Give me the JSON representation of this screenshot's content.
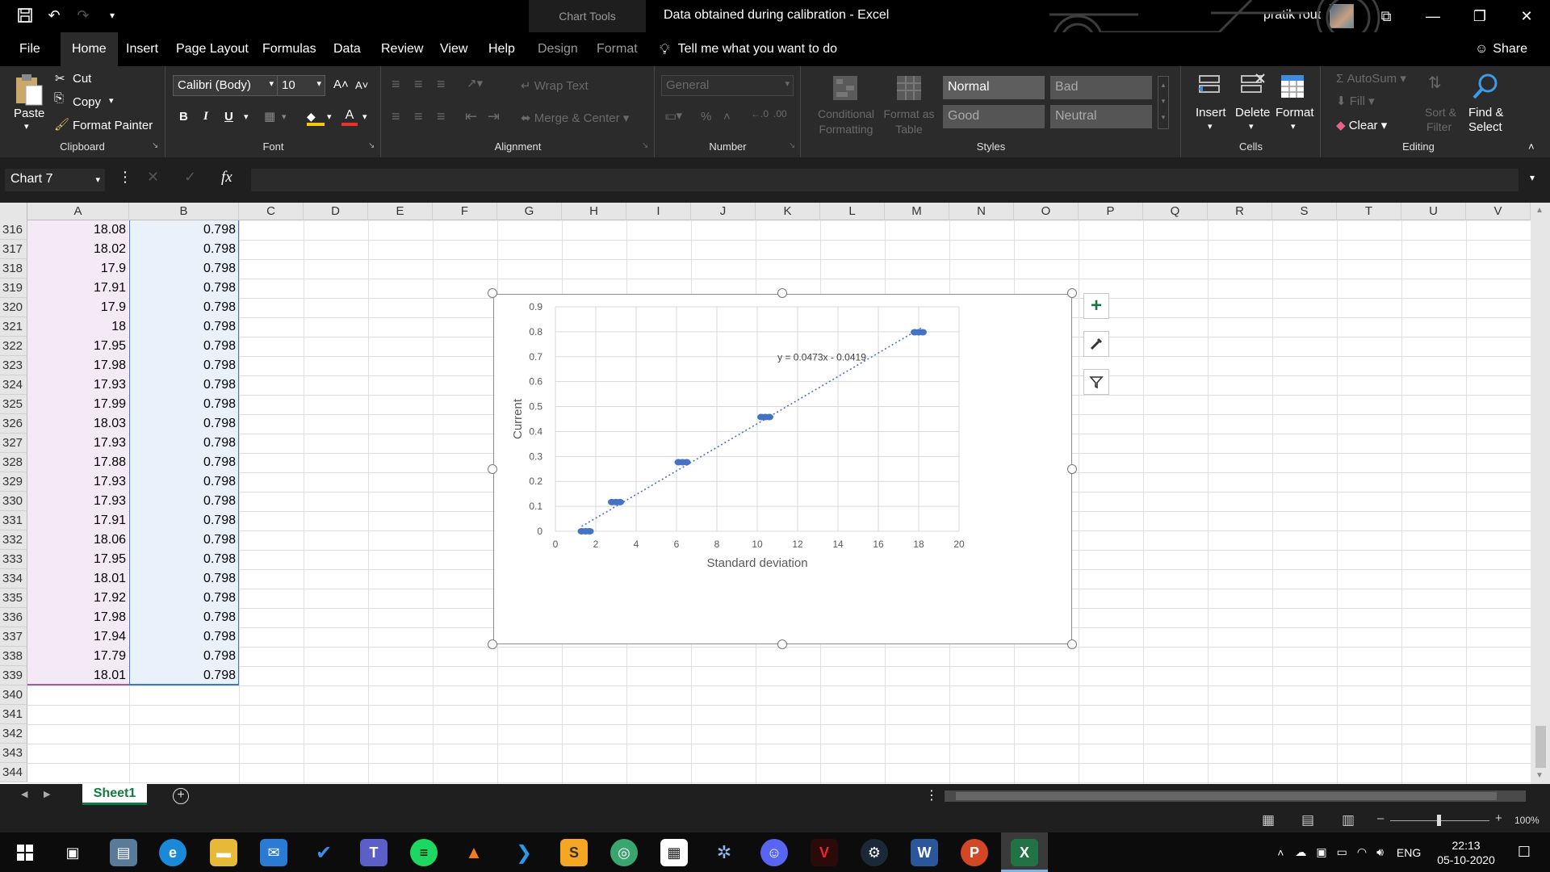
{
  "titlebar": {
    "context_tab": "Chart Tools",
    "doc_title": "Data obtained during calibration  -  Excel",
    "user": "pratik rout"
  },
  "menu": {
    "tabs": [
      "File",
      "Home",
      "Insert",
      "Page Layout",
      "Formulas",
      "Data",
      "Review",
      "View",
      "Help",
      "Design",
      "Format"
    ],
    "tell_me": "Tell me what you want to do",
    "share": "Share"
  },
  "ribbon": {
    "clipboard": {
      "paste": "Paste",
      "cut": "Cut",
      "copy": "Copy",
      "format_painter": "Format Painter",
      "label": "Clipboard"
    },
    "font": {
      "family": "Calibri (Body)",
      "size": "10",
      "bold": "B",
      "italic": "I",
      "underline": "U",
      "label": "Font"
    },
    "alignment": {
      "wrap": "Wrap Text",
      "merge": "Merge & Center",
      "label": "Alignment"
    },
    "number": {
      "format": "General",
      "label": "Number"
    },
    "styles": {
      "cond_line1": "Conditional",
      "cond_line2": "Formatting",
      "fmt_line1": "Format as",
      "fmt_line2": "Table",
      "normal": "Normal",
      "bad": "Bad",
      "good": "Good",
      "neutral": "Neutral",
      "label": "Styles"
    },
    "cells": {
      "insert": "Insert",
      "delete": "Delete",
      "format": "Format",
      "label": "Cells"
    },
    "editing": {
      "autosum": "AutoSum",
      "fill": "Fill",
      "clear": "Clear",
      "sort_line1": "Sort &",
      "sort_line2": "Filter",
      "find_line1": "Find &",
      "find_line2": "Select",
      "label": "Editing"
    }
  },
  "formula_bar": {
    "name_box": "Chart 7",
    "fx": "fx"
  },
  "columns": [
    "A",
    "B",
    "C",
    "D",
    "E",
    "F",
    "G",
    "H",
    "I",
    "J",
    "K",
    "L",
    "M",
    "N",
    "O",
    "P",
    "Q",
    "R",
    "S",
    "T",
    "U",
    "V"
  ],
  "rows": [
    {
      "n": "316",
      "a": "18.08",
      "b": "0.798"
    },
    {
      "n": "317",
      "a": "18.02",
      "b": "0.798"
    },
    {
      "n": "318",
      "a": "17.9",
      "b": "0.798"
    },
    {
      "n": "319",
      "a": "17.91",
      "b": "0.798"
    },
    {
      "n": "320",
      "a": "17.9",
      "b": "0.798"
    },
    {
      "n": "321",
      "a": "18",
      "b": "0.798"
    },
    {
      "n": "322",
      "a": "17.95",
      "b": "0.798"
    },
    {
      "n": "323",
      "a": "17.98",
      "b": "0.798"
    },
    {
      "n": "324",
      "a": "17.93",
      "b": "0.798"
    },
    {
      "n": "325",
      "a": "17.99",
      "b": "0.798"
    },
    {
      "n": "326",
      "a": "18.03",
      "b": "0.798"
    },
    {
      "n": "327",
      "a": "17.93",
      "b": "0.798"
    },
    {
      "n": "328",
      "a": "17.88",
      "b": "0.798"
    },
    {
      "n": "329",
      "a": "17.93",
      "b": "0.798"
    },
    {
      "n": "330",
      "a": "17.93",
      "b": "0.798"
    },
    {
      "n": "331",
      "a": "17.91",
      "b": "0.798"
    },
    {
      "n": "332",
      "a": "18.06",
      "b": "0.798"
    },
    {
      "n": "333",
      "a": "17.95",
      "b": "0.798"
    },
    {
      "n": "334",
      "a": "18.01",
      "b": "0.798"
    },
    {
      "n": "335",
      "a": "17.92",
      "b": "0.798"
    },
    {
      "n": "336",
      "a": "17.98",
      "b": "0.798"
    },
    {
      "n": "337",
      "a": "17.94",
      "b": "0.798"
    },
    {
      "n": "338",
      "a": "17.79",
      "b": "0.798"
    },
    {
      "n": "339",
      "a": "18.01",
      "b": "0.798"
    },
    {
      "n": "340",
      "a": "",
      "b": ""
    },
    {
      "n": "341",
      "a": "",
      "b": ""
    },
    {
      "n": "342",
      "a": "",
      "b": ""
    },
    {
      "n": "343",
      "a": "",
      "b": ""
    },
    {
      "n": "344",
      "a": "",
      "b": ""
    }
  ],
  "chart_data": {
    "type": "scatter",
    "xlabel": "Standard deviation",
    "ylabel": "Current",
    "xlim": [
      0,
      20
    ],
    "ylim": [
      0,
      0.9
    ],
    "xticks": [
      0,
      2,
      4,
      6,
      8,
      10,
      12,
      14,
      16,
      18,
      20
    ],
    "yticks": [
      0,
      0.1,
      0.2,
      0.3,
      0.4,
      0.5,
      0.6,
      0.7,
      0.8,
      0.9
    ],
    "points": [
      {
        "x": 1.3,
        "y": 0.0
      },
      {
        "x": 1.5,
        "y": 0.0
      },
      {
        "x": 1.7,
        "y": 0.0
      },
      {
        "x": 2.8,
        "y": 0.117
      },
      {
        "x": 3.0,
        "y": 0.117
      },
      {
        "x": 3.2,
        "y": 0.117
      },
      {
        "x": 6.1,
        "y": 0.277
      },
      {
        "x": 6.3,
        "y": 0.277
      },
      {
        "x": 6.5,
        "y": 0.277
      },
      {
        "x": 10.2,
        "y": 0.458
      },
      {
        "x": 10.4,
        "y": 0.458
      },
      {
        "x": 10.6,
        "y": 0.458
      },
      {
        "x": 17.8,
        "y": 0.798
      },
      {
        "x": 18.0,
        "y": 0.798
      },
      {
        "x": 18.2,
        "y": 0.798
      }
    ],
    "trendline": {
      "slope": 0.0473,
      "intercept": -0.0419,
      "x_from": 1.3,
      "x_to": 18.2,
      "label": "y = 0.0473x - 0.0419"
    },
    "marker_color": "#4472c4",
    "grid": true
  },
  "sheet": {
    "name": "Sheet1"
  },
  "status": {
    "zoom": "100%"
  },
  "taskbar": {
    "lang": "ENG",
    "time": "22:13",
    "date": "05-10-2020"
  }
}
